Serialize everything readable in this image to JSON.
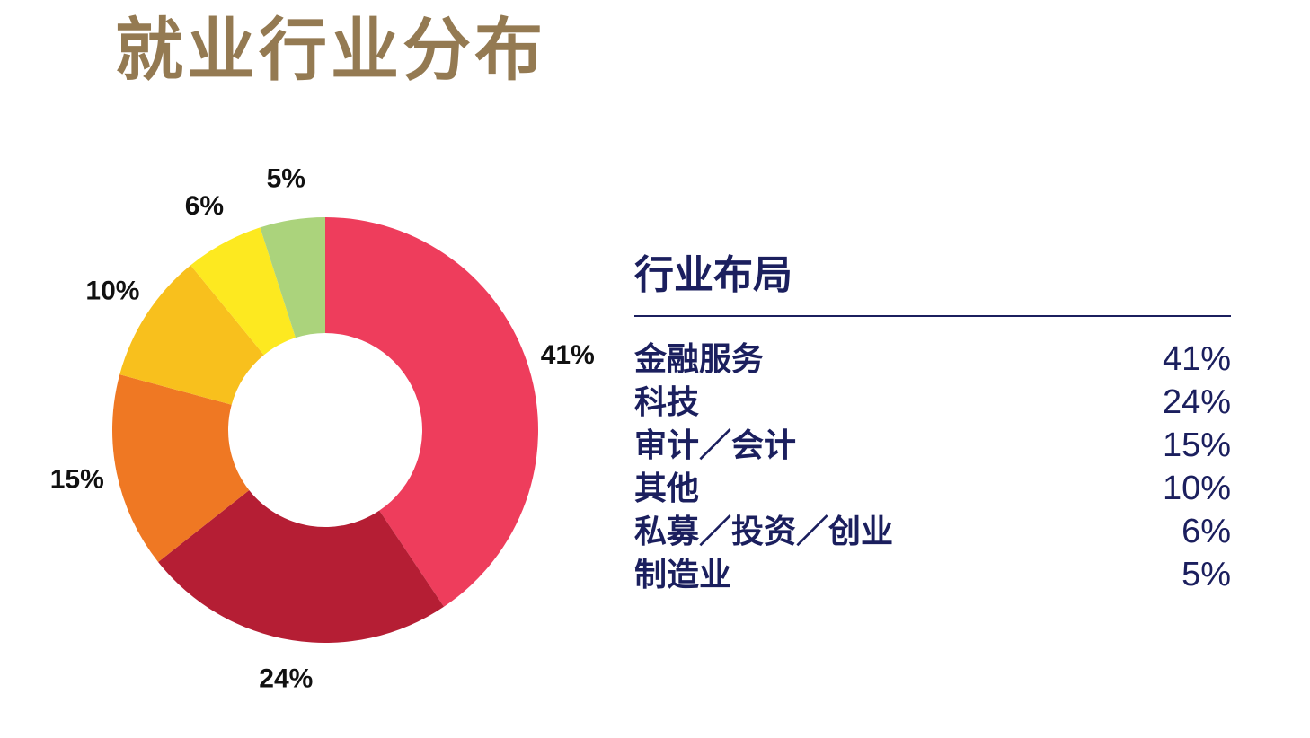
{
  "title": "就业行业分布",
  "chart_data": {
    "type": "pie",
    "donut": true,
    "categories": [
      "金融服务",
      "科技",
      "审计／会计",
      "其他",
      "私募／投资／创业",
      "制造业"
    ],
    "values": [
      41,
      24,
      15,
      10,
      6,
      5
    ],
    "value_labels": [
      "41%",
      "24%",
      "15%",
      "10%",
      "6%",
      "5%"
    ],
    "colors": [
      "#ee3d5c",
      "#b51e34",
      "#ef7823",
      "#f8c01d",
      "#fde920",
      "#abd37c"
    ]
  },
  "legend": {
    "title": "行业布局",
    "rows": [
      {
        "name": "金融服务",
        "value": "41%"
      },
      {
        "name": "科技",
        "value": "24%"
      },
      {
        "name": "审计／会计",
        "value": "15%"
      },
      {
        "name": "其他",
        "value": "10%"
      },
      {
        "name": "私募／投资／创业",
        "value": "6%"
      },
      {
        "name": "制造业",
        "value": "5%"
      }
    ]
  }
}
